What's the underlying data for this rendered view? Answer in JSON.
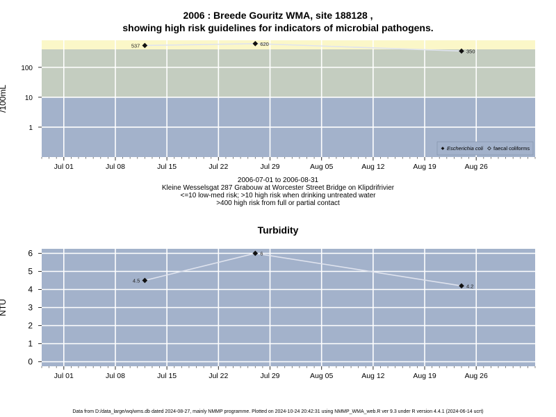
{
  "page": {
    "title_line1": "2006 : Breede Gouritz WMA, site 188128 ,",
    "title_line2": "showing high risk guidelines for indicators of microbial pathogens.",
    "caption_lines": [
      "2006-07-01 to 2006-08-31",
      "Kleine Wesselsgat 287 Grabouw at Worcester Street Bridge on Klipdrifrivier",
      "<=10 low-med risk; >10 high risk when drinking untreated water",
      ">400 high risk from full or partial contact"
    ],
    "footer": "Data from D:/data_large/wq/wms.db dated 2024-08-27, mainly NMMP programme. Plotted on 2024-10-24 20:42:31 using NMMP_WMA_web.R ver 9.3 under R version 4.4.1 (2024-06-14 ucrt)"
  },
  "chart_data": [
    {
      "type": "line",
      "title": "",
      "ylabel": "/100mL",
      "xlabel": "",
      "y_scale": "log",
      "ylim": [
        0.1,
        800
      ],
      "xlim": [
        "2006-06-28",
        "2006-09-03"
      ],
      "x_ticks": [
        "Jul 01",
        "Jul 08",
        "Jul 15",
        "Jul 22",
        "Jul 29",
        "Aug 05",
        "Aug 12",
        "Aug 19",
        "Aug 26"
      ],
      "x_tick_dates": [
        "2006-07-01",
        "2006-07-08",
        "2006-07-15",
        "2006-07-22",
        "2006-07-29",
        "2006-08-05",
        "2006-08-12",
        "2006-08-19",
        "2006-08-26"
      ],
      "y_ticks": [
        "1",
        "10",
        "100"
      ],
      "y_tick_values": [
        1,
        10,
        100
      ],
      "grid": true,
      "risk_bands": [
        {
          "from": 0.1,
          "to": 10,
          "color": "#a3b2cb"
        },
        {
          "from": 10,
          "to": 400,
          "color": "#c4cdc0"
        },
        {
          "from": 400,
          "to": 800,
          "color": "#fbf7c8"
        }
      ],
      "series": [
        {
          "name": "Escherichia coli",
          "marker": "filled-diamond",
          "x": [
            "2006-07-12",
            "2006-07-27",
            "2006-08-24"
          ],
          "y": [
            537,
            620,
            350
          ],
          "labels": [
            "537",
            "620",
            "350"
          ]
        },
        {
          "name": "faecal coliforms",
          "marker": "open-diamond",
          "x": [],
          "y": [],
          "labels": []
        }
      ],
      "legend_position": "bottom-right"
    },
    {
      "type": "line",
      "title": "Turbidity",
      "ylabel": "NTU",
      "xlabel": "",
      "y_scale": "linear",
      "ylim": [
        -0.25,
        6.25
      ],
      "xlim": [
        "2006-06-28",
        "2006-09-03"
      ],
      "x_ticks": [
        "Jul 01",
        "Jul 08",
        "Jul 15",
        "Jul 22",
        "Jul 29",
        "Aug 05",
        "Aug 12",
        "Aug 19",
        "Aug 26"
      ],
      "x_tick_dates": [
        "2006-07-01",
        "2006-07-08",
        "2006-07-15",
        "2006-07-22",
        "2006-07-29",
        "2006-08-05",
        "2006-08-12",
        "2006-08-19",
        "2006-08-26"
      ],
      "y_ticks": [
        "0",
        "1",
        "2",
        "3",
        "4",
        "5",
        "6"
      ],
      "y_tick_values": [
        0,
        1,
        2,
        3,
        4,
        5,
        6
      ],
      "grid": true,
      "background": "#a3b2cb",
      "series": [
        {
          "marker": "filled-diamond",
          "x": [
            "2006-07-12",
            "2006-07-27",
            "2006-08-24"
          ],
          "y": [
            4.5,
            6,
            4.2
          ],
          "labels": [
            "4.5",
            "6",
            "4.2"
          ]
        }
      ]
    }
  ]
}
